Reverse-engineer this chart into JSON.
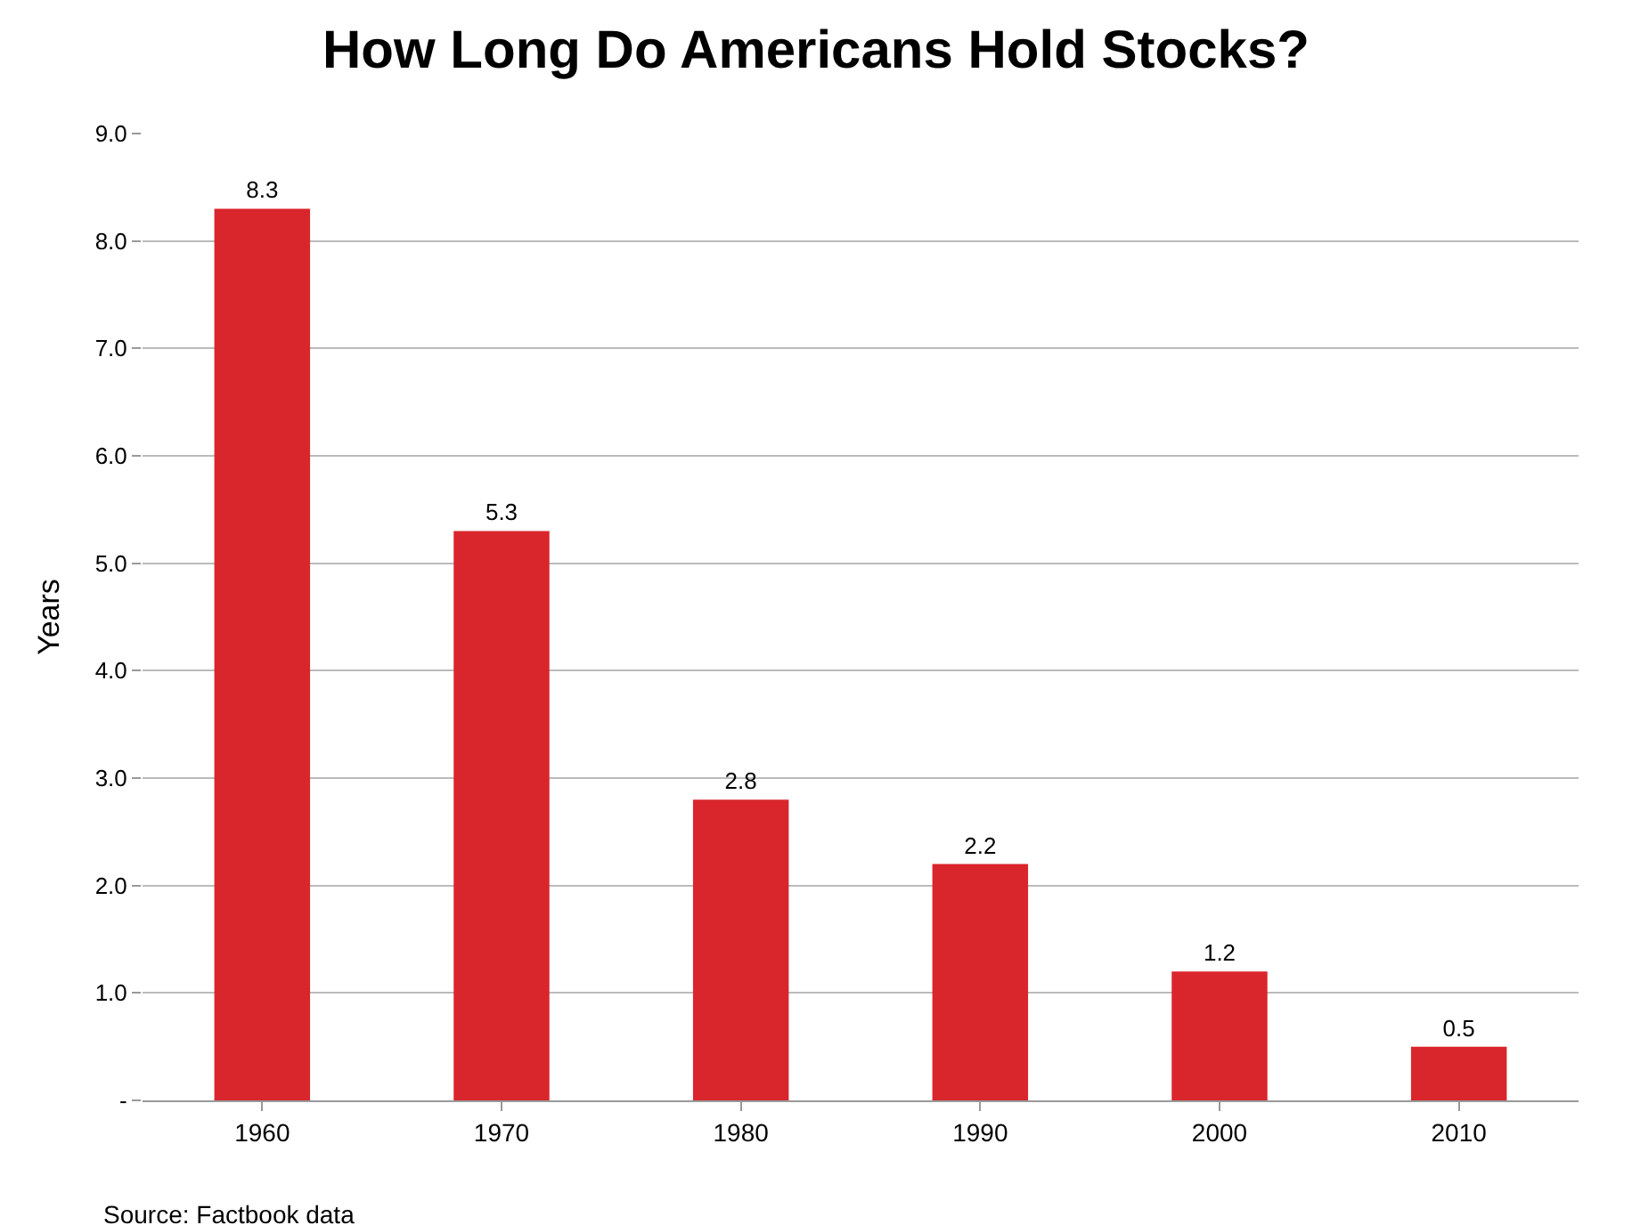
{
  "chart_data": {
    "type": "bar",
    "title": "How Long Do Americans Hold Stocks?",
    "ylabel": "Years",
    "categories": [
      "1960",
      "1970",
      "1980",
      "1990",
      "2000",
      "2010"
    ],
    "values": [
      8.3,
      5.3,
      2.8,
      2.2,
      1.2,
      0.5
    ],
    "color": "#d9262c",
    "ylim": [
      0,
      9
    ],
    "yticks": [
      {
        "value": 0,
        "label": "-"
      },
      {
        "value": 1,
        "label": "1.0"
      },
      {
        "value": 2,
        "label": "2.0"
      },
      {
        "value": 3,
        "label": "3.0"
      },
      {
        "value": 4,
        "label": "4.0"
      },
      {
        "value": 5,
        "label": "5.0"
      },
      {
        "value": 6,
        "label": "6.0"
      },
      {
        "value": 7,
        "label": "7.0"
      },
      {
        "value": 8,
        "label": "8.0"
      },
      {
        "value": 9,
        "label": "9.0"
      }
    ],
    "grid": "y",
    "data_labels": true,
    "annotations": [
      "Source: Factbook data"
    ]
  }
}
